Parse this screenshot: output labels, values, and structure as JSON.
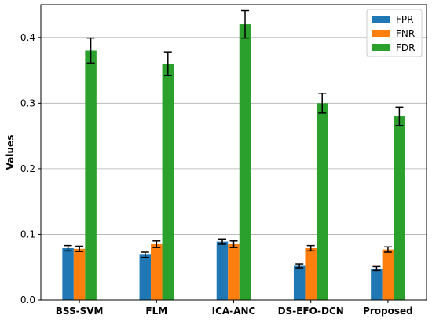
{
  "chart_data": {
    "type": "bar",
    "title": "",
    "xlabel": "",
    "ylabel": "Values",
    "ylim": [
      0,
      0.45
    ],
    "yticks": [
      "0.0",
      "0.1",
      "0.2",
      "0.3",
      "0.4"
    ],
    "grid": "horizontal",
    "legend_position": "top-right",
    "categories": [
      "BSS-SVM",
      "FLM",
      "ICA-ANC",
      "DS-EFO-DCN",
      "Proposed"
    ],
    "series": [
      {
        "name": "FPR",
        "color": "#1f77b4",
        "values": [
          0.079,
          0.069,
          0.089,
          0.052,
          0.048
        ],
        "errors": [
          0.004,
          0.004,
          0.004,
          0.003,
          0.003
        ]
      },
      {
        "name": "FNR",
        "color": "#ff7f0e",
        "values": [
          0.078,
          0.085,
          0.085,
          0.079,
          0.077
        ],
        "errors": [
          0.004,
          0.005,
          0.005,
          0.004,
          0.004
        ]
      },
      {
        "name": "FDR",
        "color": "#2ca02c",
        "values": [
          0.38,
          0.36,
          0.42,
          0.3,
          0.28
        ],
        "errors": [
          0.019,
          0.018,
          0.021,
          0.015,
          0.014
        ]
      }
    ]
  }
}
